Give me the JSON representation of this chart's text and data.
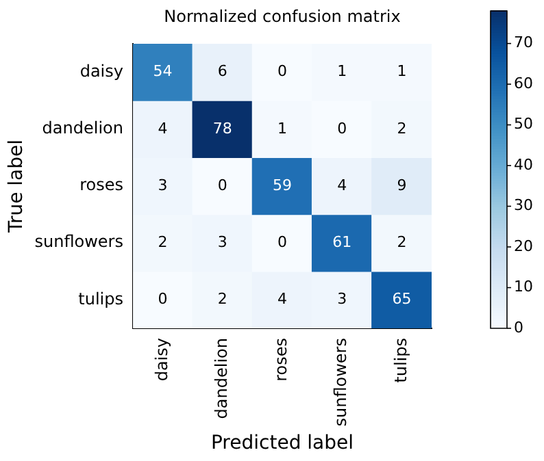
{
  "chart_data": {
    "type": "heatmap",
    "title": "Normalized confusion matrix",
    "xlabel": "Predicted label",
    "ylabel": "True label",
    "categories": [
      "daisy",
      "dandelion",
      "roses",
      "sunflowers",
      "tulips"
    ],
    "y_categories": [
      "daisy",
      "dandelion",
      "roses",
      "sunflowers",
      "tulips"
    ],
    "cells": [
      [
        54,
        6,
        0,
        1,
        1
      ],
      [
        4,
        78,
        1,
        0,
        2
      ],
      [
        3,
        0,
        59,
        4,
        9
      ],
      [
        2,
        3,
        0,
        61,
        2
      ],
      [
        0,
        2,
        4,
        3,
        65
      ]
    ],
    "clim": [
      0,
      78
    ],
    "cticks": [
      0,
      10,
      20,
      30,
      40,
      50,
      60,
      70
    ],
    "data_labels": true,
    "grid": false,
    "legend": false
  }
}
